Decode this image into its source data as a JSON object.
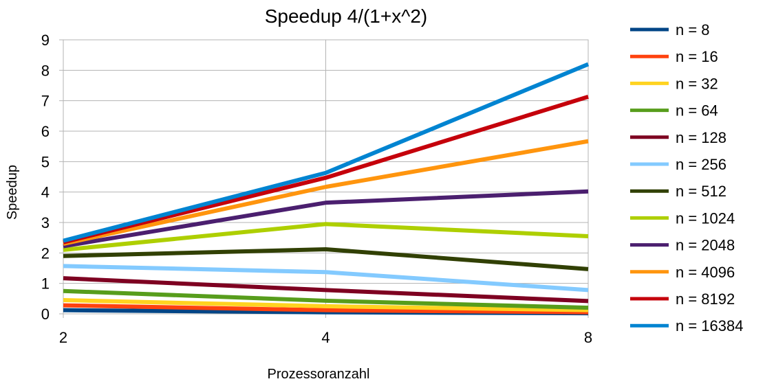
{
  "chart_data": {
    "type": "line",
    "title": "Speedup 4/(1+x^2)",
    "xlabel": "Prozessoranzahl",
    "ylabel": "Speedup",
    "categories": [
      "2",
      "4",
      "8"
    ],
    "ylim": [
      0,
      9
    ],
    "yticks": [
      "0",
      "1",
      "2",
      "3",
      "4",
      "5",
      "6",
      "7",
      "8",
      "9"
    ],
    "grid": true,
    "legend_position": "right",
    "series": [
      {
        "name": "n = 8",
        "color": "#004586",
        "values": [
          0.12,
          0.05,
          0.02
        ]
      },
      {
        "name": "n = 16",
        "color": "#ff420e",
        "values": [
          0.28,
          0.12,
          0.05
        ]
      },
      {
        "name": "n = 32",
        "color": "#ffd320",
        "values": [
          0.45,
          0.25,
          0.12
        ]
      },
      {
        "name": "n = 64",
        "color": "#579d1c",
        "values": [
          0.75,
          0.43,
          0.2
        ]
      },
      {
        "name": "n = 128",
        "color": "#7e0021",
        "values": [
          1.17,
          0.78,
          0.42
        ]
      },
      {
        "name": "n = 256",
        "color": "#83caff",
        "values": [
          1.57,
          1.37,
          0.78
        ]
      },
      {
        "name": "n = 512",
        "color": "#314004",
        "values": [
          1.9,
          2.12,
          1.47
        ]
      },
      {
        "name": "n = 1024",
        "color": "#aecf00",
        "values": [
          2.1,
          2.95,
          2.55
        ]
      },
      {
        "name": "n = 2048",
        "color": "#4b1f6f",
        "values": [
          2.22,
          3.65,
          4.02
        ]
      },
      {
        "name": "n = 4096",
        "color": "#ff950e",
        "values": [
          2.3,
          4.17,
          5.67
        ]
      },
      {
        "name": "n = 8192",
        "color": "#c5000b",
        "values": [
          2.35,
          4.47,
          7.13
        ]
      },
      {
        "name": "n = 16384",
        "color": "#0084d1",
        "values": [
          2.4,
          4.63,
          8.2
        ]
      }
    ]
  }
}
